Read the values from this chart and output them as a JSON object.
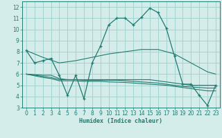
{
  "xlabel": "Humidex (Indice chaleur)",
  "bg_color": "#d4ecea",
  "grid_color": "#9dcfca",
  "line_color": "#1e7b70",
  "xlim": [
    -0.5,
    23.5
  ],
  "ylim": [
    3,
    12.5
  ],
  "yticks": [
    3,
    4,
    5,
    6,
    7,
    8,
    9,
    10,
    11,
    12
  ],
  "xticks": [
    0,
    1,
    2,
    3,
    4,
    5,
    6,
    7,
    8,
    9,
    10,
    11,
    12,
    13,
    14,
    15,
    16,
    17,
    18,
    19,
    20,
    21,
    22,
    23
  ],
  "series_main": [
    [
      0,
      8.1
    ],
    [
      1,
      7.0
    ],
    [
      2,
      7.2
    ],
    [
      3,
      7.4
    ],
    [
      4,
      5.9
    ],
    [
      5,
      4.1
    ],
    [
      6,
      5.9
    ],
    [
      7,
      3.8
    ],
    [
      8,
      7.0
    ],
    [
      9,
      8.5
    ],
    [
      10,
      10.4
    ],
    [
      11,
      11.0
    ],
    [
      12,
      11.0
    ],
    [
      13,
      10.4
    ],
    [
      14,
      11.1
    ],
    [
      15,
      11.9
    ],
    [
      16,
      11.5
    ],
    [
      17,
      10.1
    ],
    [
      18,
      7.6
    ],
    [
      19,
      5.1
    ],
    [
      20,
      5.1
    ],
    [
      21,
      4.1
    ],
    [
      22,
      3.2
    ],
    [
      23,
      5.0
    ]
  ],
  "series_line1": [
    [
      0,
      8.1
    ],
    [
      2,
      7.5
    ],
    [
      4,
      7.0
    ],
    [
      6,
      7.2
    ],
    [
      8,
      7.5
    ],
    [
      10,
      7.8
    ],
    [
      12,
      8.0
    ],
    [
      14,
      8.2
    ],
    [
      16,
      8.2
    ],
    [
      18,
      7.8
    ],
    [
      20,
      7.0
    ],
    [
      22,
      6.2
    ],
    [
      23,
      6.0
    ]
  ],
  "series_line2": [
    [
      0,
      6.0
    ],
    [
      2,
      5.9
    ],
    [
      3,
      5.9
    ],
    [
      4,
      5.6
    ],
    [
      5,
      5.5
    ],
    [
      6,
      5.5
    ],
    [
      7,
      5.5
    ],
    [
      8,
      5.5
    ],
    [
      9,
      5.5
    ],
    [
      10,
      5.5
    ],
    [
      11,
      5.5
    ],
    [
      12,
      5.5
    ],
    [
      13,
      5.5
    ],
    [
      14,
      5.5
    ],
    [
      15,
      5.5
    ],
    [
      16,
      5.4
    ],
    [
      17,
      5.3
    ],
    [
      18,
      5.2
    ],
    [
      19,
      5.1
    ],
    [
      20,
      5.0
    ],
    [
      21,
      5.0
    ],
    [
      22,
      5.0
    ],
    [
      23,
      5.0
    ]
  ],
  "series_line3": [
    [
      0,
      6.0
    ],
    [
      2,
      5.8
    ],
    [
      3,
      5.7
    ],
    [
      4,
      5.5
    ],
    [
      5,
      5.5
    ],
    [
      6,
      5.5
    ],
    [
      7,
      5.45
    ],
    [
      8,
      5.45
    ],
    [
      9,
      5.45
    ],
    [
      10,
      5.45
    ],
    [
      11,
      5.45
    ],
    [
      12,
      5.4
    ],
    [
      13,
      5.35
    ],
    [
      14,
      5.3
    ],
    [
      15,
      5.25
    ],
    [
      16,
      5.2
    ],
    [
      17,
      5.1
    ],
    [
      18,
      5.0
    ],
    [
      19,
      4.9
    ],
    [
      20,
      4.85
    ],
    [
      21,
      4.8
    ],
    [
      22,
      4.75
    ],
    [
      23,
      4.75
    ]
  ],
  "series_line4": [
    [
      0,
      6.0
    ],
    [
      2,
      5.7
    ],
    [
      3,
      5.6
    ],
    [
      4,
      5.4
    ],
    [
      5,
      5.4
    ],
    [
      6,
      5.4
    ],
    [
      7,
      5.35
    ],
    [
      8,
      5.35
    ],
    [
      9,
      5.35
    ],
    [
      10,
      5.3
    ],
    [
      11,
      5.28
    ],
    [
      12,
      5.25
    ],
    [
      13,
      5.2
    ],
    [
      14,
      5.15
    ],
    [
      15,
      5.1
    ],
    [
      16,
      5.05
    ],
    [
      17,
      5.0
    ],
    [
      18,
      4.9
    ],
    [
      19,
      4.8
    ],
    [
      20,
      4.7
    ],
    [
      21,
      4.6
    ],
    [
      22,
      4.5
    ],
    [
      23,
      4.5
    ]
  ]
}
